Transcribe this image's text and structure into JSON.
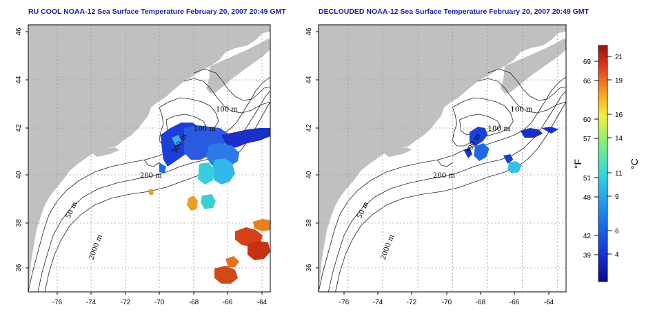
{
  "titles": {
    "left": "RU COOL NOAA-12 Sea Surface Temperature February 20, 2007 20:49 GMT",
    "right": "DECLOUDED NOAA-12 Sea Surface Temperature February 20, 2007 20:49 GMT"
  },
  "axes": {
    "lon_ticks": [
      "-76",
      "-74",
      "-72",
      "-70",
      "-68",
      "-66",
      "-64"
    ],
    "lat_ticks": [
      "36",
      "38",
      "40",
      "42",
      "44",
      "46"
    ],
    "lon_range": [
      -77.2,
      -63
    ],
    "lat_range": [
      35,
      46
    ]
  },
  "contour_labels": {
    "m100": "100 m",
    "m200": "200 m",
    "m50": "50 m",
    "m2000": "2000 m",
    "m300": "300 m"
  },
  "colorbar": {
    "unit_f": "°F",
    "unit_c": "°C",
    "fahrenheit_ticks": [
      "69",
      "66",
      "60",
      "57",
      "51",
      "48",
      "42",
      "39"
    ],
    "celsius_ticks": [
      "21",
      "19",
      "16",
      "14",
      "11",
      "9",
      "6",
      "4"
    ],
    "colors": [
      "#0a0a8c",
      "#1533d9",
      "#1e88ee",
      "#2ed6e6",
      "#7cf07c",
      "#f2f23a",
      "#f9a01c",
      "#e8401a",
      "#9a0f0f"
    ]
  },
  "colors": {
    "land": "#c0c0c0",
    "ocean": "#ffffff",
    "contour": "#222222",
    "grid": "#9a9a9a",
    "title": "#1a1aa6"
  }
}
